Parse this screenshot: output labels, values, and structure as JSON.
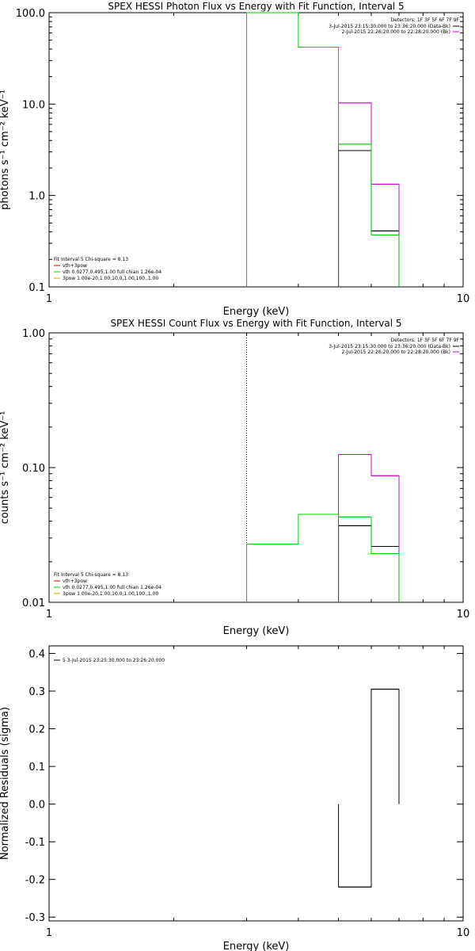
{
  "chart_data": [
    {
      "type": "line",
      "title": "SPEX HESSI Photon Flux vs Energy with Fit Function, Interval 5",
      "xlabel": "Energy (keV)",
      "ylabel": "photons s⁻¹ cm⁻² keV⁻¹",
      "xscale": "log",
      "yscale": "log",
      "xlim": [
        1,
        10
      ],
      "ylim": [
        0.1,
        100
      ],
      "xticks": [
        "1",
        "10"
      ],
      "yticks": [
        {
          "v": 0.1,
          "label": "0.1"
        },
        {
          "v": 1,
          "label": "1.0"
        },
        {
          "v": 10,
          "label": "10.0"
        },
        {
          "v": 100,
          "label": "100.0"
        }
      ],
      "legend_right_title": "Detectors: 1F 3F 5F 6F 7F 9F",
      "legend_right": [
        {
          "text": "3-Jul-2015 23:15:30.000 to 23:36:20.000 (Data-Bk)",
          "color": "#000000"
        },
        {
          "text": "2-Jul-2015 22:26:20.000 to 22:28:20.000 (Bk)",
          "color": "#cc00cc"
        }
      ],
      "legend_left": [
        {
          "text": "Fit Interval 5   Chi-square = 8.13",
          "color": null
        },
        {
          "text": "vth+3pow",
          "color": "#cc0000"
        },
        {
          "text": "vth 0.0277,0.495,1.00   full chian 1.26e-04",
          "color": "#00cc00"
        },
        {
          "text": "3pow 1.00e-20,1.00,10.0,1.00,100.,1.00",
          "color": "#ccaa00"
        }
      ],
      "dotted_x": 3,
      "series": [
        {
          "color": "#000000",
          "steps": [
            {
              "x0": 5,
              "x1": 6,
              "y": 3.1
            },
            {
              "x0": 6,
              "x1": 7,
              "y": 0.41
            }
          ]
        },
        {
          "color": "#cc00cc",
          "steps": [
            {
              "x0": 5,
              "x1": 6,
              "y": 10.3
            },
            {
              "x0": 6,
              "x1": 7,
              "y": 1.33
            }
          ]
        },
        {
          "color": "#00cc00",
          "steps": [
            {
              "x0": 3,
              "x1": 4,
              "y": 200
            },
            {
              "x0": 4,
              "x1": 5,
              "y": 42
            },
            {
              "x0": 5,
              "x1": 6,
              "y": 3.65
            },
            {
              "x0": 6,
              "x1": 7,
              "y": 0.37
            }
          ]
        }
      ]
    },
    {
      "type": "line",
      "title": "SPEX HESSI Count Flux vs Energy with Fit Function, Interval 5",
      "xlabel": "Energy (keV)",
      "ylabel": "counts s⁻¹ cm⁻² keV⁻¹",
      "xscale": "log",
      "yscale": "log",
      "xlim": [
        1,
        10
      ],
      "ylim": [
        0.01,
        1
      ],
      "xticks": [
        "1",
        "10"
      ],
      "yticks": [
        {
          "v": 0.01,
          "label": "0.01"
        },
        {
          "v": 0.1,
          "label": "0.10"
        },
        {
          "v": 1,
          "label": "1.00"
        }
      ],
      "legend_right_title": "Detectors: 1F 3F 5F 6F 7F 9F",
      "legend_right": [
        {
          "text": "3-Jul-2015 23:15:30.000 to 23:36:20.000 (Data-Bk)",
          "color": "#000000"
        },
        {
          "text": "2-Jul-2015 22:26:20.000 to 22:28:20.000 (Bk)",
          "color": "#cc00cc"
        }
      ],
      "legend_left": [
        {
          "text": "Fit Interval 5   Chi-square = 8.13",
          "color": null
        },
        {
          "text": "vth+3pow",
          "color": "#cc0000"
        },
        {
          "text": "vth 0.0277,0.495,1.00   full chian 1.26e-04",
          "color": "#00cc00"
        },
        {
          "text": "3pow 1.00e-20,1.00,10.0,1.00,100.,1.00",
          "color": "#ccaa00"
        }
      ],
      "dotted_x": 3,
      "series": [
        {
          "color": "#000000",
          "steps": [
            {
              "x0": 5,
              "x1": 6,
              "y": 0.037
            },
            {
              "x0": 6,
              "x1": 7,
              "y": 0.026
            }
          ]
        },
        {
          "color": "#cc00cc",
          "steps": [
            {
              "x0": 5,
              "x1": 6,
              "y": 0.125
            },
            {
              "x0": 6,
              "x1": 7,
              "y": 0.087
            }
          ]
        },
        {
          "color": "#00cc00",
          "steps": [
            {
              "x0": 3,
              "x1": 4,
              "y": 0.027
            },
            {
              "x0": 4,
              "x1": 5,
              "y": 0.045
            },
            {
              "x0": 5,
              "x1": 6,
              "y": 0.043
            },
            {
              "x0": 6,
              "x1": 7,
              "y": 0.023
            }
          ]
        }
      ]
    },
    {
      "type": "bar",
      "title": "",
      "xlabel": "Energy (keV)",
      "ylabel": "Normalized Residuals (sigma)",
      "xscale": "log",
      "yscale": "linear",
      "xlim": [
        1,
        10
      ],
      "ylim": [
        -0.31,
        0.42
      ],
      "xticks": [
        "1",
        "10"
      ],
      "yticks": [
        {
          "v": -0.3,
          "label": "-0.3"
        },
        {
          "v": -0.2,
          "label": "-0.2"
        },
        {
          "v": -0.1,
          "label": "-0.1"
        },
        {
          "v": 0,
          "label": "0.0"
        },
        {
          "v": 0.1,
          "label": "0.1"
        },
        {
          "v": 0.2,
          "label": "0.2"
        },
        {
          "v": 0.3,
          "label": "0.3"
        },
        {
          "v": 0.4,
          "label": "0.4"
        }
      ],
      "legend_left": [
        {
          "text": "5  3-Jul-2015 23:25:30.000 to 23:26:20.000",
          "color": "#000000"
        }
      ],
      "series": [
        {
          "color": "#000000",
          "steps": [
            {
              "x0": 5,
              "x1": 6,
              "y": -0.22
            },
            {
              "x0": 6,
              "x1": 7,
              "y": 0.305
            }
          ]
        }
      ]
    }
  ]
}
